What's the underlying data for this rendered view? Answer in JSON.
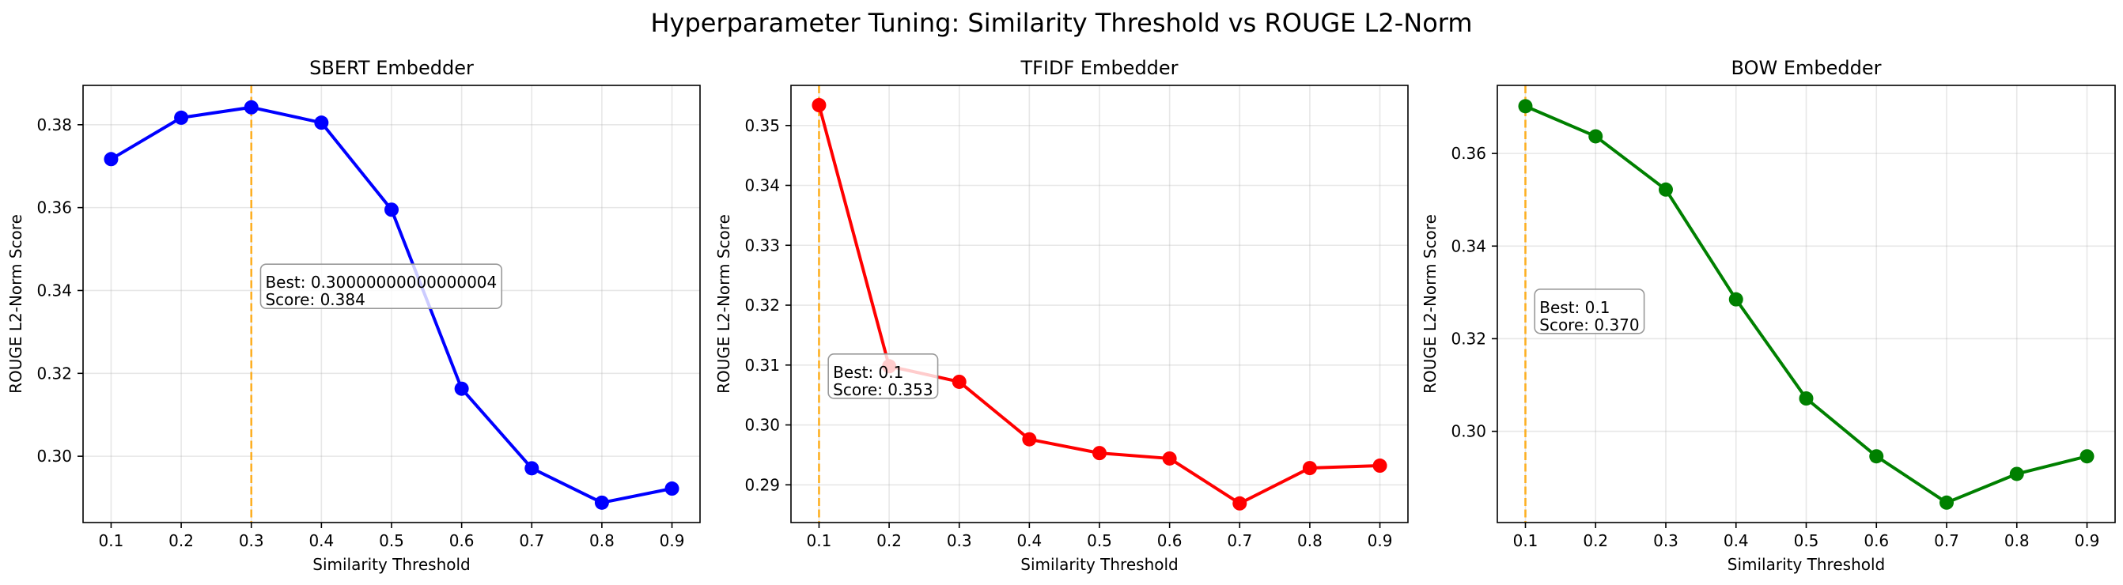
{
  "figure": {
    "suptitle": "Hyperparameter Tuning: Similarity Threshold vs ROUGE L2-Norm"
  },
  "chart_data": [
    {
      "type": "line",
      "title": "SBERT Embedder",
      "xlabel": "Similarity Threshold",
      "ylabel": "ROUGE L2-Norm Score",
      "x": [
        0.1,
        0.2,
        0.3,
        0.4,
        0.5,
        0.6,
        0.7,
        0.8,
        0.9
      ],
      "x_ticks": [
        "0.1",
        "0.2",
        "0.3",
        "0.4",
        "0.5",
        "0.6",
        "0.7",
        "0.8",
        "0.9"
      ],
      "xlim": [
        0.06,
        0.94
      ],
      "y_ticks": [
        0.3,
        0.32,
        0.34,
        0.36,
        0.38
      ],
      "y_tick_labels": [
        "0.30",
        "0.32",
        "0.34",
        "0.36",
        "0.38"
      ],
      "ylim": [
        0.284,
        0.3895
      ],
      "series": [
        {
          "color": "#0000ff",
          "values": [
            0.3717,
            0.3817,
            0.3842,
            0.3805,
            0.3595,
            0.3163,
            0.2971,
            0.2888,
            0.2922
          ]
        }
      ],
      "best_line": {
        "x": 0.3,
        "color": "#ffa500"
      },
      "annotation": {
        "lines": [
          "Best: 0.30000000000000004",
          "Score: 0.384"
        ],
        "anchor": [
          0.32,
          0.3372
        ]
      },
      "grid": true
    },
    {
      "type": "line",
      "title": "TFIDF Embedder",
      "xlabel": "Similarity Threshold",
      "ylabel": "ROUGE L2-Norm Score",
      "x": [
        0.1,
        0.2,
        0.3,
        0.4,
        0.5,
        0.6,
        0.7,
        0.8,
        0.9
      ],
      "x_ticks": [
        "0.1",
        "0.2",
        "0.3",
        "0.4",
        "0.5",
        "0.6",
        "0.7",
        "0.8",
        "0.9"
      ],
      "xlim": [
        0.06,
        0.94
      ],
      "y_ticks": [
        0.29,
        0.3,
        0.31,
        0.32,
        0.33,
        0.34,
        0.35
      ],
      "y_tick_labels": [
        "0.29",
        "0.30",
        "0.31",
        "0.32",
        "0.33",
        "0.34",
        "0.35"
      ],
      "ylim": [
        0.2837,
        0.3567
      ],
      "series": [
        {
          "color": "#ff0000",
          "values": [
            0.3534,
            0.3098,
            0.3072,
            0.2976,
            0.2953,
            0.2944,
            0.2869,
            0.2928,
            0.2932
          ]
        }
      ],
      "best_line": {
        "x": 0.1,
        "color": "#ffa500"
      },
      "annotation": {
        "lines": [
          "Best: 0.1",
          "Score: 0.353"
        ],
        "anchor": [
          0.12,
          0.3055
        ]
      },
      "grid": true
    },
    {
      "type": "line",
      "title": "BOW Embedder",
      "xlabel": "Similarity Threshold",
      "ylabel": "ROUGE L2-Norm Score",
      "x": [
        0.1,
        0.2,
        0.3,
        0.4,
        0.5,
        0.6,
        0.7,
        0.8,
        0.9
      ],
      "x_ticks": [
        "0.1",
        "0.2",
        "0.3",
        "0.4",
        "0.5",
        "0.6",
        "0.7",
        "0.8",
        "0.9"
      ],
      "xlim": [
        0.06,
        0.94
      ],
      "y_ticks": [
        0.3,
        0.32,
        0.34,
        0.36
      ],
      "y_tick_labels": [
        "0.30",
        "0.32",
        "0.34",
        "0.36"
      ],
      "ylim": [
        0.2803,
        0.3747
      ],
      "series": [
        {
          "color": "#008000",
          "values": [
            0.3702,
            0.3637,
            0.3522,
            0.3285,
            0.3071,
            0.2946,
            0.2846,
            0.2908,
            0.2946
          ]
        }
      ],
      "best_line": {
        "x": 0.1,
        "color": "#ffa500"
      },
      "annotation": {
        "lines": [
          "Best: 0.1",
          "Score: 0.370"
        ],
        "anchor": [
          0.12,
          0.3225
        ]
      },
      "grid": true
    }
  ]
}
